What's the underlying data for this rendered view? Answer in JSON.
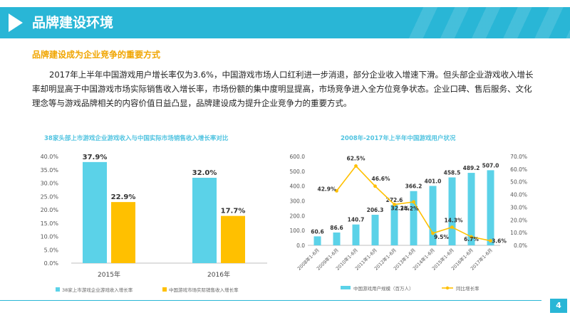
{
  "header": {
    "title": "品牌建设环境"
  },
  "section": {
    "title": "品牌建设成为企业竞争的重要方式"
  },
  "paragraph": "2017年上半年中国游戏用户增长率仅为3.6%，中国游戏市场人口红利进一步消退，部分企业收入增速下滑。但头部企业游戏收入增长率却明显高于中国游戏市场实际销售收入增长率，市场份额的集中度明显提高，市场竞争进入全方位竞争状态。企业口碑、售后服务、文化理念等与游戏品牌相关的内容价值日益凸显，品牌建设成为提升企业竞争力的重要方式。",
  "page_number": "4",
  "colors": {
    "accent": "#29b6d6",
    "cyan_bar": "#5bd2e8",
    "yellow": "#ffc000",
    "title_orange": "#f0a500"
  },
  "chart_data": [
    {
      "type": "bar",
      "title": "38家头部上市游戏企业游戏收入与中国实际市场销售收入增长率对比",
      "categories": [
        "2015年",
        "2016年"
      ],
      "series": [
        {
          "name": "38家上市游戏企业游戏收入增长率",
          "values": [
            37.9,
            32.0
          ],
          "labels": [
            "37.9%",
            "32.0%"
          ],
          "color": "#5bd2e8"
        },
        {
          "name": "中国游戏市场实际销售收入增长率",
          "values": [
            22.9,
            17.7
          ],
          "labels": [
            "22.9%",
            "17.7%"
          ],
          "color": "#ffc000"
        }
      ],
      "ylim": [
        0,
        40
      ],
      "yticks": [
        "0.0%",
        "5.0%",
        "10.0%",
        "15.0%",
        "20.0%",
        "25.0%",
        "30.0%",
        "35.0%",
        "40.0%"
      ],
      "legend": "bottom"
    },
    {
      "type": "bar+line",
      "title": "2008年-2017年上半年中国游戏用户状况",
      "categories": [
        "2008年1-6月",
        "2009年1-6月",
        "2010年1-6月",
        "2011年1-6月",
        "2012年1-6月",
        "2013年1-6月",
        "2014年1-6月",
        "2015年1-6月",
        "2016年1-6月",
        "2017年1-6月"
      ],
      "bars": {
        "name": "中国游戏用户规模（百万人）",
        "values": [
          60.6,
          86.6,
          140.7,
          206.3,
          272.6,
          366.2,
          401.0,
          458.5,
          489.2,
          507.0
        ],
        "labels": [
          "60.6",
          "86.6",
          "140.7",
          "206.3",
          "272.6",
          "366.2",
          "401.0",
          "458.5",
          "489.2",
          "507.0"
        ],
        "color": "#5bd2e8"
      },
      "line": {
        "name": "同比增长率",
        "values": [
          null,
          42.9,
          62.5,
          46.6,
          32.2,
          34.2,
          9.5,
          14.3,
          6.7,
          3.6
        ],
        "labels": [
          null,
          "42.9%",
          "62.5%",
          "46.6%",
          "32.2%",
          "34.2%",
          "9.5%",
          "14.3%",
          "6.7%",
          "3.6%"
        ],
        "color": "#ffc000"
      },
      "ylim_left": [
        0,
        600
      ],
      "yticks_left": [
        "0.0",
        "100.0",
        "200.0",
        "300.0",
        "400.0",
        "500.0",
        "600.0"
      ],
      "ylim_right": [
        0,
        70
      ],
      "yticks_right": [
        "0.0%",
        "10.0%",
        "20.0%",
        "30.0%",
        "40.0%",
        "50.0%",
        "60.0%",
        "70.0%"
      ],
      "legend": "bottom"
    }
  ]
}
